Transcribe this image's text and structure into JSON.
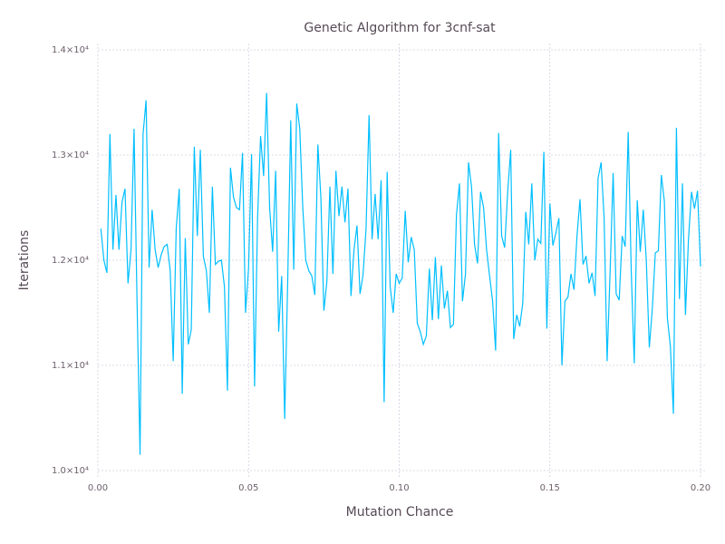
{
  "chart_data": {
    "type": "line",
    "title": "Genetic Algorithm for 3cnf-sat",
    "x_label": "Mutation Chance",
    "y_label": "Iterations",
    "xlim": [
      0,
      0.2
    ],
    "ylim": [
      10000,
      14000
    ],
    "xticks": [
      {
        "value": 0,
        "label": "0.00"
      },
      0.05,
      {
        "value": 0.1,
        "label": "0.10"
      },
      0.15,
      {
        "value": 0.2,
        "label": "0.20"
      }
    ],
    "yticks": [
      {
        "value": 10000,
        "label": "1.0×10⁴"
      },
      {
        "value": 11000,
        "label": "1.1×10⁴"
      },
      {
        "value": 12000,
        "label": "1.2×10⁴"
      },
      {
        "value": 13000,
        "label": "1.3×10⁴"
      },
      {
        "value": 14000,
        "label": "1.4×10⁴"
      }
    ],
    "grid": true,
    "x": [
      0.001,
      0.002,
      0.003,
      0.004,
      0.005,
      0.006,
      0.007,
      0.008,
      0.009,
      0.01,
      0.011,
      0.012,
      0.013,
      0.014,
      0.015,
      0.016,
      0.017,
      0.018,
      0.019,
      0.02,
      0.021,
      0.022,
      0.023,
      0.024,
      0.025,
      0.026,
      0.027,
      0.028,
      0.029,
      0.03,
      0.031,
      0.032,
      0.033,
      0.034,
      0.035,
      0.036,
      0.037,
      0.038,
      0.039,
      0.04,
      0.041,
      0.042,
      0.043,
      0.044,
      0.045,
      0.046,
      0.047,
      0.048,
      0.049,
      0.05,
      0.051,
      0.052,
      0.053,
      0.054,
      0.055,
      0.056,
      0.057,
      0.058,
      0.059,
      0.06,
      0.061,
      0.062,
      0.063,
      0.064,
      0.065,
      0.066,
      0.067,
      0.068,
      0.069,
      0.07,
      0.071,
      0.072,
      0.073,
      0.074,
      0.075,
      0.076,
      0.077,
      0.078,
      0.079,
      0.08,
      0.081,
      0.082,
      0.083,
      0.084,
      0.085,
      0.086,
      0.087,
      0.088,
      0.089,
      0.09,
      0.091,
      0.092,
      0.093,
      0.094,
      0.095,
      0.096,
      0.097,
      0.098,
      0.099,
      0.1,
      0.101,
      0.102,
      0.103,
      0.104,
      0.105,
      0.106,
      0.107,
      0.108,
      0.109,
      0.11,
      0.111,
      0.112,
      0.113,
      0.114,
      0.115,
      0.116,
      0.117,
      0.118,
      0.119,
      0.12,
      0.121,
      0.122,
      0.123,
      0.124,
      0.125,
      0.126,
      0.127,
      0.128,
      0.129,
      0.13,
      0.131,
      0.132,
      0.133,
      0.134,
      0.135,
      0.136,
      0.137,
      0.138,
      0.139,
      0.14,
      0.141,
      0.142,
      0.143,
      0.144,
      0.145,
      0.146,
      0.147,
      0.148,
      0.149,
      0.15,
      0.151,
      0.152,
      0.153,
      0.154,
      0.155,
      0.156,
      0.157,
      0.158,
      0.159,
      0.16,
      0.161,
      0.162,
      0.163,
      0.164,
      0.165,
      0.166,
      0.167,
      0.168,
      0.169,
      0.17,
      0.171,
      0.172,
      0.173,
      0.174,
      0.175,
      0.176,
      0.177,
      0.178,
      0.179,
      0.18,
      0.181,
      0.182,
      0.183,
      0.184,
      0.185,
      0.186,
      0.187,
      0.188,
      0.189,
      0.19,
      0.191,
      0.192,
      0.193,
      0.194,
      0.195,
      0.196,
      0.197,
      0.198,
      0.199,
      0.2
    ],
    "series": [
      {
        "name": "Iterations",
        "color": "#00bfff",
        "values": [
          12300,
          12000,
          11880,
          13200,
          12100,
          12620,
          12100,
          12550,
          12680,
          11780,
          12100,
          13250,
          11600,
          10150,
          13200,
          13520,
          11930,
          12480,
          12100,
          11930,
          12050,
          12130,
          12150,
          11900,
          11040,
          12300,
          12680,
          10730,
          12210,
          11200,
          11340,
          13080,
          12230,
          13050,
          12040,
          11900,
          11500,
          12700,
          11960,
          11990,
          12000,
          11750,
          10760,
          12880,
          12600,
          12500,
          12480,
          13020,
          11500,
          11920,
          13010,
          10800,
          12400,
          13180,
          12800,
          13590,
          12500,
          12080,
          12850,
          11320,
          11850,
          10490,
          11800,
          13330,
          11910,
          13490,
          13250,
          12500,
          12000,
          11900,
          11850,
          11670,
          13100,
          12600,
          11520,
          11800,
          12700,
          11870,
          12850,
          12420,
          12700,
          12360,
          12680,
          11660,
          12100,
          12330,
          11680,
          11860,
          12300,
          13380,
          12200,
          12630,
          12200,
          12760,
          10650,
          12840,
          11750,
          11500,
          11870,
          11780,
          11830,
          12470,
          11980,
          12220,
          12100,
          11400,
          11320,
          11200,
          11280,
          11920,
          11430,
          12030,
          11440,
          11950,
          11540,
          11710,
          11360,
          11390,
          12430,
          12730,
          11610,
          11870,
          12930,
          12700,
          12150,
          11970,
          12650,
          12500,
          12100,
          11850,
          11610,
          11140,
          13210,
          12230,
          12120,
          12650,
          13050,
          11250,
          11480,
          11370,
          11590,
          12460,
          12150,
          12730,
          12000,
          12200,
          12160,
          13030,
          11350,
          12540,
          12140,
          12260,
          12400,
          11000,
          11610,
          11650,
          11870,
          11720,
          12230,
          12580,
          11960,
          12040,
          11780,
          11880,
          11660,
          12780,
          12930,
          12400,
          11040,
          11900,
          12830,
          11680,
          11620,
          12230,
          12130,
          13220,
          11900,
          11020,
          12570,
          12080,
          12480,
          12000,
          11170,
          11540,
          12070,
          12090,
          12810,
          12560,
          11450,
          11180,
          10540,
          13260,
          11630,
          12730,
          11480,
          12200,
          12650,
          12490,
          12660,
          11940
        ]
      }
    ]
  }
}
